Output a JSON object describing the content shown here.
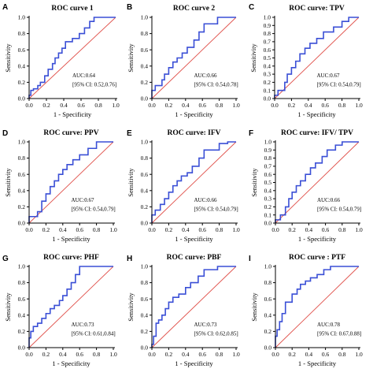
{
  "colors": {
    "roc": "#3a4fd6",
    "diagonal": "#e0504a",
    "axis": "#000000"
  },
  "chart_data": [
    {
      "type": "line",
      "panel": "A",
      "title": "ROC curve 1",
      "xlabel": "1 - Specificity",
      "ylabel": "Sensitivity",
      "xlim": [
        0,
        1
      ],
      "ylim": [
        0,
        1
      ],
      "xticks": [
        "0.0",
        "0.2",
        "0.4",
        "0.6",
        "0.8",
        "1.0"
      ],
      "yticks": [
        "0.0",
        "0.2",
        "0.4",
        "0.6",
        "0.8",
        "1.0"
      ],
      "auc": "AUC:0.64",
      "ci": "[95% CI: 0.52,0.76]",
      "x": [
        0,
        0,
        0.02,
        0.02,
        0.05,
        0.05,
        0.1,
        0.1,
        0.13,
        0.13,
        0.18,
        0.18,
        0.22,
        0.22,
        0.27,
        0.27,
        0.3,
        0.3,
        0.34,
        0.34,
        0.38,
        0.38,
        0.42,
        0.42,
        0.5,
        0.5,
        0.58,
        0.58,
        0.64,
        0.64,
        0.7,
        0.7,
        0.75,
        0.75,
        1.0
      ],
      "y": [
        0,
        0.04,
        0.04,
        0.1,
        0.1,
        0.12,
        0.12,
        0.16,
        0.16,
        0.2,
        0.2,
        0.28,
        0.28,
        0.36,
        0.36,
        0.43,
        0.43,
        0.5,
        0.5,
        0.56,
        0.56,
        0.62,
        0.62,
        0.7,
        0.7,
        0.74,
        0.74,
        0.8,
        0.8,
        0.87,
        0.87,
        0.95,
        0.95,
        1.0,
        1.0
      ]
    },
    {
      "type": "line",
      "panel": "B",
      "title": "ROC curve 2",
      "xlabel": "1 - Specificity",
      "ylabel": "Sensitivity",
      "xlim": [
        0,
        1
      ],
      "ylim": [
        0,
        1
      ],
      "xticks": [
        "0.0",
        "0.2",
        "0.4",
        "0.6",
        "0.8",
        "1.0"
      ],
      "yticks": [
        "0.0",
        "0.2",
        "0.4",
        "0.6",
        "0.8",
        "1.0"
      ],
      "auc": "AUC:0.66",
      "ci": "[95% CI: 0.54,0.78]",
      "x": [
        0,
        0,
        0.04,
        0.04,
        0.12,
        0.12,
        0.15,
        0.15,
        0.2,
        0.2,
        0.25,
        0.25,
        0.3,
        0.3,
        0.36,
        0.36,
        0.42,
        0.42,
        0.5,
        0.5,
        0.56,
        0.56,
        0.62,
        0.62,
        0.78,
        0.78,
        1.0
      ],
      "y": [
        0,
        0.1,
        0.1,
        0.16,
        0.16,
        0.23,
        0.23,
        0.3,
        0.3,
        0.38,
        0.38,
        0.45,
        0.45,
        0.5,
        0.5,
        0.56,
        0.56,
        0.63,
        0.63,
        0.72,
        0.72,
        0.82,
        0.82,
        0.92,
        0.92,
        1.0,
        1.0
      ]
    },
    {
      "type": "line",
      "panel": "C",
      "title": "ROC curve: TPV",
      "xlabel": "1 - Specificity",
      "ylabel": "Sensitivity",
      "xlim": [
        0,
        1
      ],
      "ylim": [
        0,
        1
      ],
      "xticks": [
        "0.0",
        "0.2",
        "0.4",
        "0.6",
        "0.8",
        "1.0"
      ],
      "yticks": [
        "0.0",
        "0.1",
        "0.2",
        "0.3",
        "0.4",
        "0.5",
        "0.6",
        "0.7",
        "0.8",
        "0.9",
        "1.0"
      ],
      "auc": "AUC:0.67",
      "ci": "[95% CI: 0.54,0.79]",
      "x": [
        0,
        0,
        0.04,
        0.04,
        0.12,
        0.12,
        0.15,
        0.15,
        0.2,
        0.2,
        0.25,
        0.25,
        0.3,
        0.3,
        0.36,
        0.36,
        0.42,
        0.42,
        0.5,
        0.5,
        0.58,
        0.58,
        0.7,
        0.7,
        0.8,
        0.8,
        0.88,
        0.88,
        1.0
      ],
      "y": [
        0,
        0.04,
        0.04,
        0.1,
        0.1,
        0.2,
        0.2,
        0.3,
        0.3,
        0.38,
        0.38,
        0.46,
        0.46,
        0.55,
        0.55,
        0.62,
        0.62,
        0.68,
        0.68,
        0.74,
        0.74,
        0.82,
        0.82,
        0.88,
        0.88,
        0.95,
        0.95,
        1.0,
        1.0
      ]
    },
    {
      "type": "line",
      "panel": "D",
      "title": "ROC curve: PPV",
      "xlabel": "1 - Specificity",
      "ylabel": "Sensitivity",
      "xlim": [
        0,
        1
      ],
      "ylim": [
        0,
        1
      ],
      "xticks": [
        "0.0",
        "0.2",
        "0.4",
        "0.6",
        "0.8",
        "1.0"
      ],
      "yticks": [
        "0.0",
        "0.2",
        "0.4",
        "0.6",
        "0.8",
        "1.0"
      ],
      "auc": "AUC:0.67",
      "ci": "[95% CI: 0.54,0.79]",
      "x": [
        0,
        0,
        0.1,
        0.1,
        0.15,
        0.15,
        0.2,
        0.2,
        0.25,
        0.25,
        0.3,
        0.3,
        0.35,
        0.35,
        0.4,
        0.4,
        0.45,
        0.45,
        0.52,
        0.52,
        0.6,
        0.6,
        0.7,
        0.7,
        0.8,
        0.8,
        0.88,
        0.88,
        1.0
      ],
      "y": [
        0,
        0.08,
        0.08,
        0.14,
        0.14,
        0.27,
        0.27,
        0.36,
        0.36,
        0.45,
        0.45,
        0.52,
        0.52,
        0.6,
        0.6,
        0.66,
        0.66,
        0.72,
        0.72,
        0.78,
        0.78,
        0.84,
        0.84,
        0.92,
        0.92,
        1.0,
        1.0,
        1.0,
        1.0
      ]
    },
    {
      "type": "line",
      "panel": "E",
      "title": "ROC curve: IFV",
      "xlabel": "1 - Specificity",
      "ylabel": "Sensitivity",
      "xlim": [
        0,
        1
      ],
      "ylim": [
        0,
        1
      ],
      "xticks": [
        "0.0",
        "0.2",
        "0.4",
        "0.6",
        "0.8",
        "1.0"
      ],
      "yticks": [
        "0.0",
        "0.2",
        "0.4",
        "0.6",
        "0.8",
        "1.0"
      ],
      "auc": "AUC:0.66",
      "ci": "[95% CI: 0.54,0.79]",
      "x": [
        0,
        0,
        0.04,
        0.04,
        0.1,
        0.1,
        0.15,
        0.15,
        0.2,
        0.2,
        0.25,
        0.25,
        0.3,
        0.3,
        0.35,
        0.35,
        0.42,
        0.42,
        0.48,
        0.48,
        0.56,
        0.56,
        0.62,
        0.62,
        0.8,
        0.8,
        0.9,
        0.9,
        1.0
      ],
      "y": [
        0,
        0.1,
        0.1,
        0.16,
        0.16,
        0.23,
        0.23,
        0.3,
        0.3,
        0.38,
        0.38,
        0.46,
        0.46,
        0.52,
        0.52,
        0.58,
        0.58,
        0.62,
        0.62,
        0.7,
        0.7,
        0.8,
        0.8,
        0.9,
        0.9,
        0.98,
        0.98,
        1.0,
        1.0
      ]
    },
    {
      "type": "line",
      "panel": "F",
      "title": "ROC curve: IFV/ TPV",
      "xlabel": "1 - Specificity",
      "ylabel": "Sensitivity",
      "xlim": [
        0,
        1
      ],
      "ylim": [
        0,
        1
      ],
      "xticks": [
        "0.0",
        "0.2",
        "0.4",
        "0.6",
        "0.8",
        "1.0"
      ],
      "yticks": [
        "0.0",
        "0.1",
        "0.2",
        "0.3",
        "0.4",
        "0.5",
        "0.6",
        "0.7",
        "0.8",
        "0.9",
        "1.0"
      ],
      "auc": "AUC:0.66",
      "ci": "[95% CI: 0.54,0.79]",
      "x": [
        0,
        0,
        0.06,
        0.06,
        0.12,
        0.12,
        0.16,
        0.16,
        0.2,
        0.2,
        0.25,
        0.25,
        0.3,
        0.3,
        0.36,
        0.36,
        0.42,
        0.42,
        0.48,
        0.48,
        0.56,
        0.56,
        0.62,
        0.62,
        0.72,
        0.72,
        0.8,
        0.8,
        1.0
      ],
      "y": [
        0,
        0.04,
        0.04,
        0.1,
        0.1,
        0.2,
        0.2,
        0.3,
        0.3,
        0.38,
        0.38,
        0.46,
        0.46,
        0.52,
        0.52,
        0.6,
        0.6,
        0.68,
        0.68,
        0.74,
        0.74,
        0.82,
        0.82,
        0.9,
        0.9,
        0.96,
        0.96,
        1.0,
        1.0
      ]
    },
    {
      "type": "line",
      "panel": "G",
      "title": "ROC curve: PHF",
      "xlabel": "1 - Specificity",
      "ylabel": "Sensitivity",
      "xlim": [
        0,
        1
      ],
      "ylim": [
        0,
        1
      ],
      "xticks": [
        "0.0",
        "0.2",
        "0.4",
        "0.6",
        "0.8",
        "1.0"
      ],
      "yticks": [
        "0.0",
        "0.2",
        "0.4",
        "0.6",
        "0.8",
        "1.0"
      ],
      "auc": "AUC:0.73",
      "ci": "[95% CI: 0.61,0.84]",
      "x": [
        0,
        0,
        0.02,
        0.02,
        0.05,
        0.05,
        0.1,
        0.1,
        0.15,
        0.15,
        0.2,
        0.2,
        0.25,
        0.25,
        0.3,
        0.3,
        0.36,
        0.36,
        0.4,
        0.4,
        0.45,
        0.45,
        0.5,
        0.5,
        0.55,
        0.55,
        0.6,
        0.6,
        1.0
      ],
      "y": [
        0,
        0.12,
        0.12,
        0.2,
        0.2,
        0.26,
        0.26,
        0.3,
        0.3,
        0.36,
        0.36,
        0.42,
        0.42,
        0.48,
        0.48,
        0.52,
        0.52,
        0.58,
        0.58,
        0.64,
        0.64,
        0.72,
        0.72,
        0.8,
        0.8,
        0.9,
        0.9,
        1.0,
        1.0
      ]
    },
    {
      "type": "line",
      "panel": "H",
      "title": "ROC curve: PBF",
      "xlabel": "1 - Specificity",
      "ylabel": "Sensitivity",
      "xlim": [
        0,
        1
      ],
      "ylim": [
        0,
        1
      ],
      "xticks": [
        "0.0",
        "0.2",
        "0.4",
        "0.6",
        "0.8",
        "1.0"
      ],
      "yticks": [
        "0.0",
        "0.2",
        "0.4",
        "0.6",
        "0.8",
        "1.0"
      ],
      "auc": "AUC:0.73",
      "ci": "[95% CI: 0.62,0.85]",
      "x": [
        0,
        0,
        0.02,
        0.02,
        0.05,
        0.05,
        0.08,
        0.08,
        0.12,
        0.12,
        0.16,
        0.16,
        0.2,
        0.2,
        0.25,
        0.25,
        0.32,
        0.32,
        0.4,
        0.4,
        0.46,
        0.46,
        0.55,
        0.55,
        0.62,
        0.62,
        0.78,
        0.78,
        1.0
      ],
      "y": [
        0,
        0.04,
        0.04,
        0.14,
        0.14,
        0.3,
        0.3,
        0.34,
        0.34,
        0.4,
        0.4,
        0.48,
        0.48,
        0.56,
        0.56,
        0.62,
        0.62,
        0.66,
        0.66,
        0.74,
        0.74,
        0.8,
        0.8,
        0.88,
        0.88,
        0.96,
        0.96,
        1.0,
        1.0
      ]
    },
    {
      "type": "line",
      "panel": "I",
      "title": "ROC curve : PTF",
      "xlabel": "1 - Specificity",
      "ylabel": "Sensitivity",
      "xlim": [
        0,
        1
      ],
      "ylim": [
        0,
        1
      ],
      "xticks": [
        "0.0",
        "0.2",
        "0.4",
        "0.6",
        "0.8",
        "1.0"
      ],
      "yticks": [
        "0.0",
        "0.2",
        "0.4",
        "0.6",
        "0.8",
        "1.0"
      ],
      "auc": "AUC:0.78",
      "ci": "[95% CI: 0.67,0.88]",
      "x": [
        0,
        0,
        0.02,
        0.02,
        0.05,
        0.05,
        0.08,
        0.08,
        0.12,
        0.12,
        0.2,
        0.2,
        0.26,
        0.26,
        0.3,
        0.3,
        0.36,
        0.36,
        0.42,
        0.42,
        0.5,
        0.5,
        0.58,
        0.58,
        0.66,
        0.66,
        0.78,
        0.78,
        1.0
      ],
      "y": [
        0,
        0.14,
        0.14,
        0.22,
        0.22,
        0.32,
        0.32,
        0.42,
        0.42,
        0.56,
        0.56,
        0.66,
        0.66,
        0.72,
        0.72,
        0.78,
        0.78,
        0.82,
        0.82,
        0.86,
        0.86,
        0.9,
        0.9,
        0.96,
        0.96,
        1.0,
        1.0,
        1.0,
        1.0
      ]
    }
  ]
}
